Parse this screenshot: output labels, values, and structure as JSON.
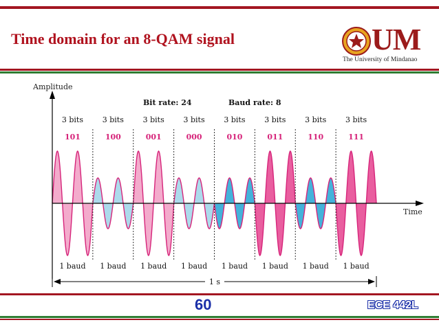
{
  "slide": {
    "title": "Time domain for an 8-QAM signal",
    "page_number": "60",
    "course_code": "ECE 442L"
  },
  "logo": {
    "wordmark": "UM",
    "name": "The University of Mindanao"
  },
  "diagram": {
    "y_axis_label": "Amplitude",
    "x_axis_label": "Time",
    "bit_rate_label": "Bit rate: 24",
    "baud_rate_label": "Baud rate: 8",
    "duration_label": "1 s",
    "baud_label": "1 baud",
    "bits_label": "3 bits",
    "symbols": [
      {
        "bits": "101",
        "amplitude": "high",
        "phase": 0
      },
      {
        "bits": "100",
        "amplitude": "low",
        "phase": 0
      },
      {
        "bits": "001",
        "amplitude": "high",
        "phase": 0
      },
      {
        "bits": "000",
        "amplitude": "low",
        "phase": 0
      },
      {
        "bits": "010",
        "amplitude": "low",
        "phase": 180
      },
      {
        "bits": "011",
        "amplitude": "high",
        "phase": 180
      },
      {
        "bits": "110",
        "amplitude": "low",
        "phase": 180
      },
      {
        "bits": "111",
        "amplitude": "high",
        "phase": 180
      }
    ],
    "colors": {
      "high_fill": "#f2a6c9",
      "low_fill": "#a8d8ea",
      "high_dark": "#e8559a",
      "low_dark": "#3aaed8",
      "bits_text": "#d6247a",
      "stroke": "#d6247a"
    }
  }
}
